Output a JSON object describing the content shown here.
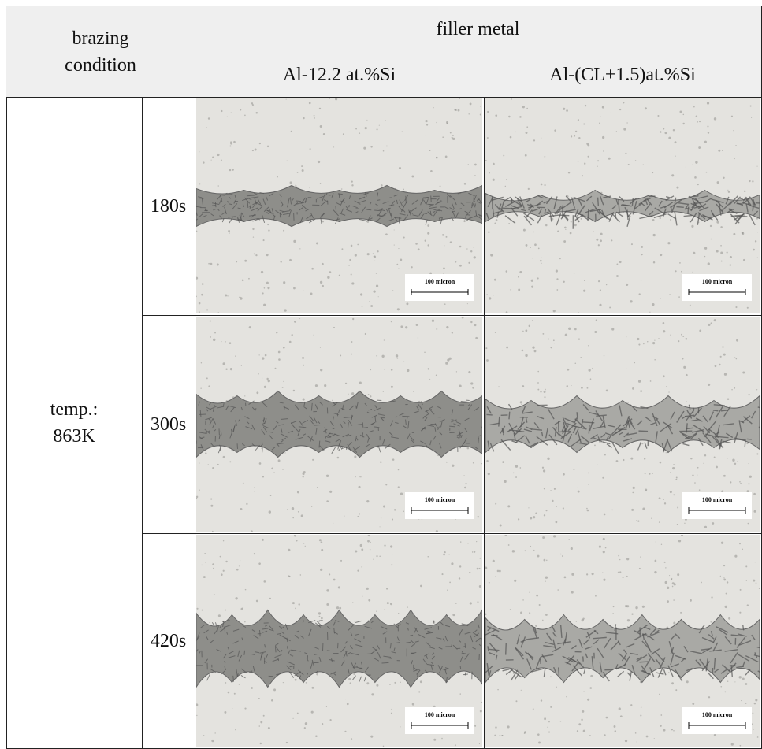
{
  "header": {
    "condition_lines": [
      "brazing",
      "condition"
    ],
    "filler": "filler metal",
    "columns": [
      "Al-12.2 at.%Si",
      "Al-(CL+1.5)at.%Si"
    ]
  },
  "temperature_lines": [
    "temp.:",
    "863K"
  ],
  "rows": [
    {
      "time": "180s",
      "scale_labels": [
        "100 micron",
        "100 micron"
      ]
    },
    {
      "time": "300s",
      "scale_labels": [
        "100 micron",
        "100 micron"
      ]
    },
    {
      "time": "420s",
      "scale_labels": [
        "100 micron",
        "100 micron"
      ]
    }
  ]
}
